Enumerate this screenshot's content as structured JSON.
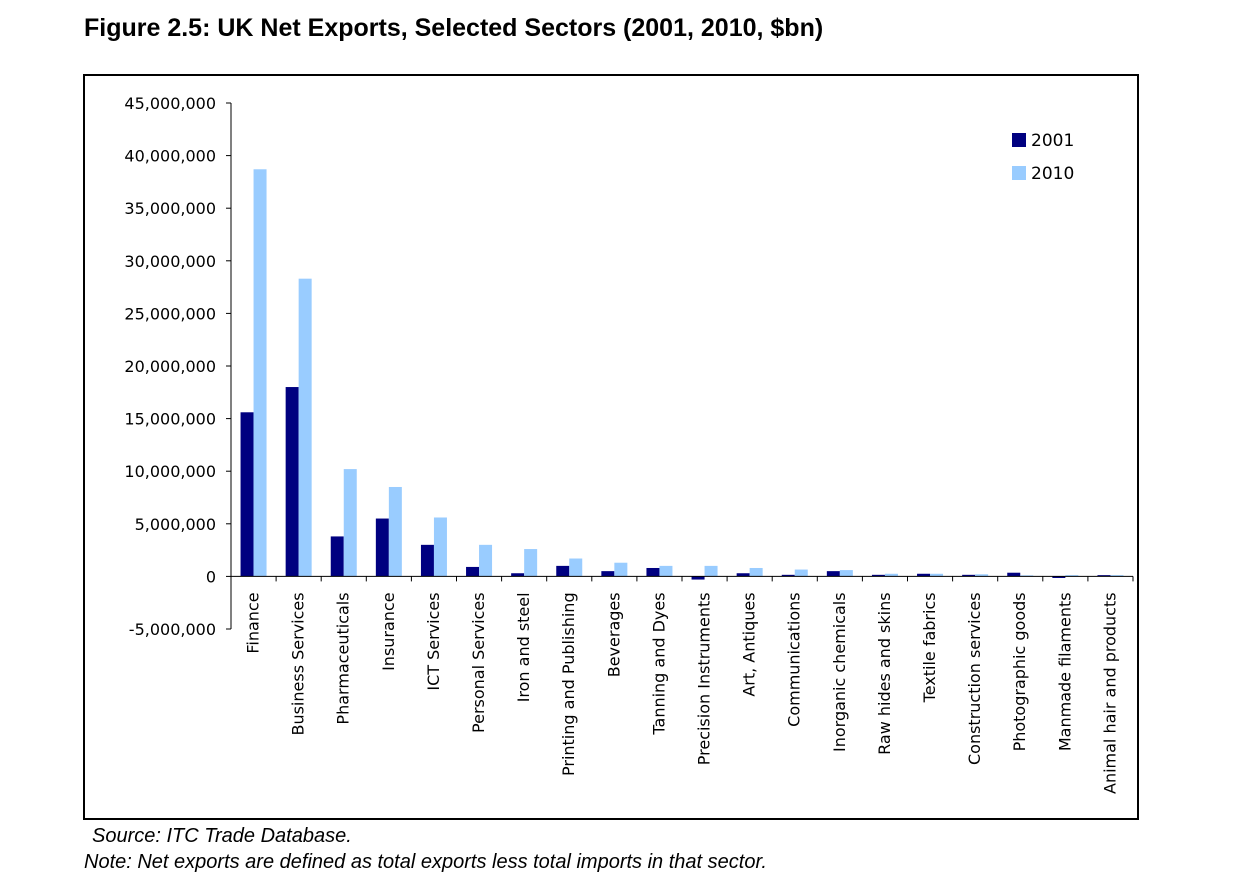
{
  "figure": {
    "title": "Figure 2.5: UK Net Exports, Selected Sectors (2001, 2010, $bn)",
    "source": "Source: ITC Trade Database.",
    "note": "Note: Net exports are defined as total exports less total imports in that sector."
  },
  "chart_data": {
    "type": "bar",
    "title": "",
    "xlabel": "",
    "ylabel": "",
    "ylim": [
      -5000000,
      45000000
    ],
    "yticks": [
      45000000,
      40000000,
      35000000,
      30000000,
      25000000,
      20000000,
      15000000,
      10000000,
      5000000,
      0,
      -5000000
    ],
    "ytick_labels": [
      "45,000,000",
      "40,000,000",
      "35,000,000",
      "30,000,000",
      "25,000,000",
      "20,000,000",
      "15,000,000",
      "10,000,000",
      "5,000,000",
      "0",
      "-5,000,000"
    ],
    "grid": false,
    "legend_position": "top-right",
    "categories": [
      "Finance",
      "Business Services",
      "Pharmaceuticals",
      "Insurance",
      "ICT Services",
      "Personal Services",
      "Iron and steel",
      "Printing and Publishing",
      "Beverages",
      "Tanning and Dyes",
      "Precision Instruments",
      "Art, Antiques",
      "Communications",
      "Inorganic chemicals",
      "Raw hides and skins",
      "Textile fabrics",
      "Construction services",
      "Photographic goods",
      "Manmade filaments",
      "Animal hair and products"
    ],
    "series": [
      {
        "name": "2001",
        "color": "#000080",
        "values": [
          15600000,
          18000000,
          3800000,
          5500000,
          3000000,
          900000,
          300000,
          1000000,
          500000,
          800000,
          -300000,
          300000,
          150000,
          500000,
          150000,
          250000,
          150000,
          350000,
          -150000,
          120000
        ]
      },
      {
        "name": "2010",
        "color": "#99ccff",
        "values": [
          38700000,
          28300000,
          10200000,
          8500000,
          5600000,
          3000000,
          2600000,
          1700000,
          1300000,
          1000000,
          1000000,
          800000,
          650000,
          600000,
          250000,
          250000,
          200000,
          100000,
          120000,
          120000
        ]
      }
    ]
  }
}
